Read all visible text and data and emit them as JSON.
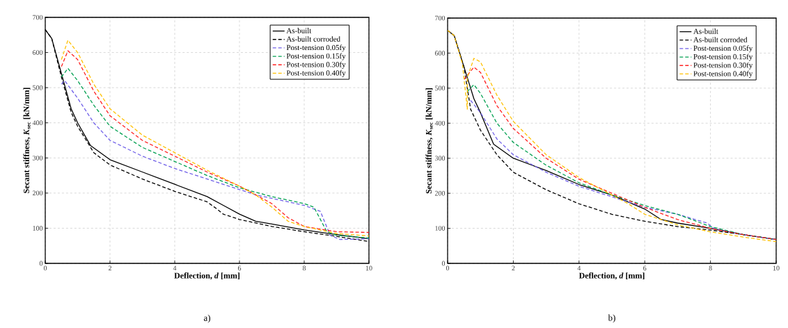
{
  "chart_data": [
    {
      "type": "line",
      "xlabel": "Deflection, *d* [mm]",
      "ylabel": "Secant stiffness, *K*$_{sec}$ [kN/mm]",
      "annotations": [
        "a)"
      ],
      "xlim": [
        0,
        10
      ],
      "ylim": [
        0,
        700
      ],
      "xticks": [
        0,
        2,
        4,
        6,
        8,
        10
      ],
      "yticks": [
        0,
        100,
        200,
        300,
        400,
        500,
        600,
        700
      ],
      "grid": true,
      "legend": "top right",
      "marker": "none",
      "series": [
        {
          "name": "As-built",
          "color": "#000000",
          "line_style": "solid",
          "x": [
            0,
            0.2,
            0.5,
            0.8,
            1.0,
            1.4,
            2,
            3,
            4,
            5,
            5.5,
            6,
            6.5,
            7,
            8,
            9,
            10
          ],
          "values": [
            665,
            640,
            540,
            440,
            400,
            335,
            295,
            260,
            225,
            190,
            165,
            140,
            120,
            112,
            95,
            82,
            70
          ]
        },
        {
          "name": "As-built corroded",
          "color": "#000000",
          "line_style": "dashed",
          "x": [
            0,
            0.2,
            0.5,
            0.8,
            1.0,
            1.5,
            2,
            3,
            4,
            5,
            5.3,
            5.5,
            6,
            7,
            8,
            9,
            10
          ],
          "values": [
            665,
            640,
            530,
            430,
            390,
            315,
            280,
            240,
            205,
            175,
            155,
            140,
            125,
            105,
            90,
            77,
            62
          ]
        },
        {
          "name": "Post-tension 0.05fy",
          "color": "#6f5fe8",
          "line_style": "dashed",
          "x": [
            0.5,
            0.6,
            1,
            1.5,
            2,
            3,
            4,
            5,
            6,
            6.5,
            7,
            8,
            8.5,
            8.8,
            9.1,
            10
          ],
          "values": [
            510,
            520,
            470,
            400,
            350,
            305,
            270,
            240,
            210,
            195,
            185,
            165,
            148,
            80,
            68,
            70
          ]
        },
        {
          "name": "Post-tension 0.15fy",
          "color": "#00a050",
          "line_style": "dashed",
          "x": [
            0.5,
            0.7,
            1,
            1.5,
            2,
            3,
            4,
            5,
            6,
            7,
            7.5,
            8,
            8.3,
            8.7,
            9,
            10
          ],
          "values": [
            530,
            555,
            520,
            450,
            390,
            330,
            290,
            250,
            215,
            190,
            180,
            170,
            160,
            90,
            80,
            72
          ]
        },
        {
          "name": "Post-tension 0.30fy",
          "color": "#ff2020",
          "line_style": "dashed",
          "x": [
            0.5,
            0.7,
            1,
            1.5,
            2,
            3,
            4,
            5,
            6,
            6.5,
            7,
            7.5,
            8,
            9,
            10
          ],
          "values": [
            560,
            605,
            580,
            490,
            420,
            350,
            305,
            260,
            220,
            195,
            170,
            130,
            105,
            90,
            88
          ]
        },
        {
          "name": "Post-tension 0.40fy",
          "color": "#ffc000",
          "line_style": "dashed",
          "x": [
            0.5,
            0.7,
            1,
            1.5,
            2,
            3,
            4,
            5,
            6,
            6.5,
            7,
            7.5,
            8,
            9,
            10
          ],
          "values": [
            580,
            635,
            600,
            510,
            440,
            365,
            315,
            265,
            220,
            195,
            160,
            120,
            105,
            85,
            78
          ]
        }
      ]
    },
    {
      "type": "line",
      "xlabel": "Deflection, *d* [mm]",
      "ylabel": "Secant stiffness, *K*$_{sec}$ [kN/mm]",
      "annotations": [
        "b)"
      ],
      "xlim": [
        0,
        10
      ],
      "ylim": [
        0,
        700
      ],
      "xticks": [
        0,
        2,
        4,
        6,
        8,
        10
      ],
      "yticks": [
        0,
        100,
        200,
        300,
        400,
        500,
        600,
        700
      ],
      "grid": true,
      "legend": "top right",
      "marker": "none",
      "series": [
        {
          "name": "As-built",
          "color": "#000000",
          "line_style": "solid",
          "x": [
            0,
            0.2,
            0.5,
            0.8,
            1.0,
            1.4,
            2,
            3,
            4,
            5,
            6,
            6.5,
            7,
            8,
            9,
            10
          ],
          "values": [
            665,
            650,
            560,
            470,
            430,
            340,
            300,
            265,
            225,
            195,
            155,
            125,
            115,
            100,
            82,
            68
          ]
        },
        {
          "name": "As-built corroded",
          "color": "#000000",
          "line_style": "dashed",
          "x": [
            0,
            0.2,
            0.5,
            0.7,
            1,
            1.5,
            2,
            3,
            4,
            5,
            6,
            7,
            8,
            9,
            10
          ],
          "values": [
            665,
            650,
            560,
            440,
            380,
            310,
            260,
            210,
            170,
            140,
            120,
            105,
            95,
            82,
            68
          ]
        },
        {
          "name": "Post-tension 0.05fy",
          "color": "#6f5fe8",
          "line_style": "dashed",
          "x": [
            0.7,
            1,
            1.5,
            2,
            3,
            4,
            5,
            6,
            7,
            7.9,
            8.1,
            9,
            10
          ],
          "values": [
            465,
            430,
            355,
            310,
            260,
            220,
            190,
            160,
            140,
            115,
            100,
            82,
            68
          ]
        },
        {
          "name": "Post-tension 0.15fy",
          "color": "#00a050",
          "line_style": "dashed",
          "x": [
            0.6,
            0.8,
            1,
            1.5,
            2,
            3,
            4,
            5,
            6,
            7,
            8,
            9,
            10
          ],
          "values": [
            490,
            510,
            485,
            400,
            345,
            280,
            230,
            195,
            165,
            140,
            105,
            82,
            68
          ]
        },
        {
          "name": "Post-tension 0.30fy",
          "color": "#ff2020",
          "line_style": "dashed",
          "x": [
            0.5,
            0.8,
            1,
            1.5,
            2,
            3,
            4,
            5,
            6,
            7,
            8,
            9,
            10
          ],
          "values": [
            525,
            560,
            545,
            450,
            385,
            300,
            240,
            200,
            160,
            125,
            100,
            82,
            68
          ]
        },
        {
          "name": "Post-tension 0.40fy",
          "color": "#ffc000",
          "line_style": "dashed",
          "x": [
            0,
            0.2,
            0.45,
            0.6,
            0.6,
            0.8,
            1,
            1.5,
            2,
            3,
            4,
            5,
            5.5,
            6,
            7,
            8,
            9,
            10
          ],
          "values": [
            665,
            650,
            570,
            440,
            530,
            585,
            575,
            480,
            405,
            310,
            245,
            195,
            170,
            140,
            110,
            90,
            75,
            62
          ]
        }
      ]
    }
  ]
}
